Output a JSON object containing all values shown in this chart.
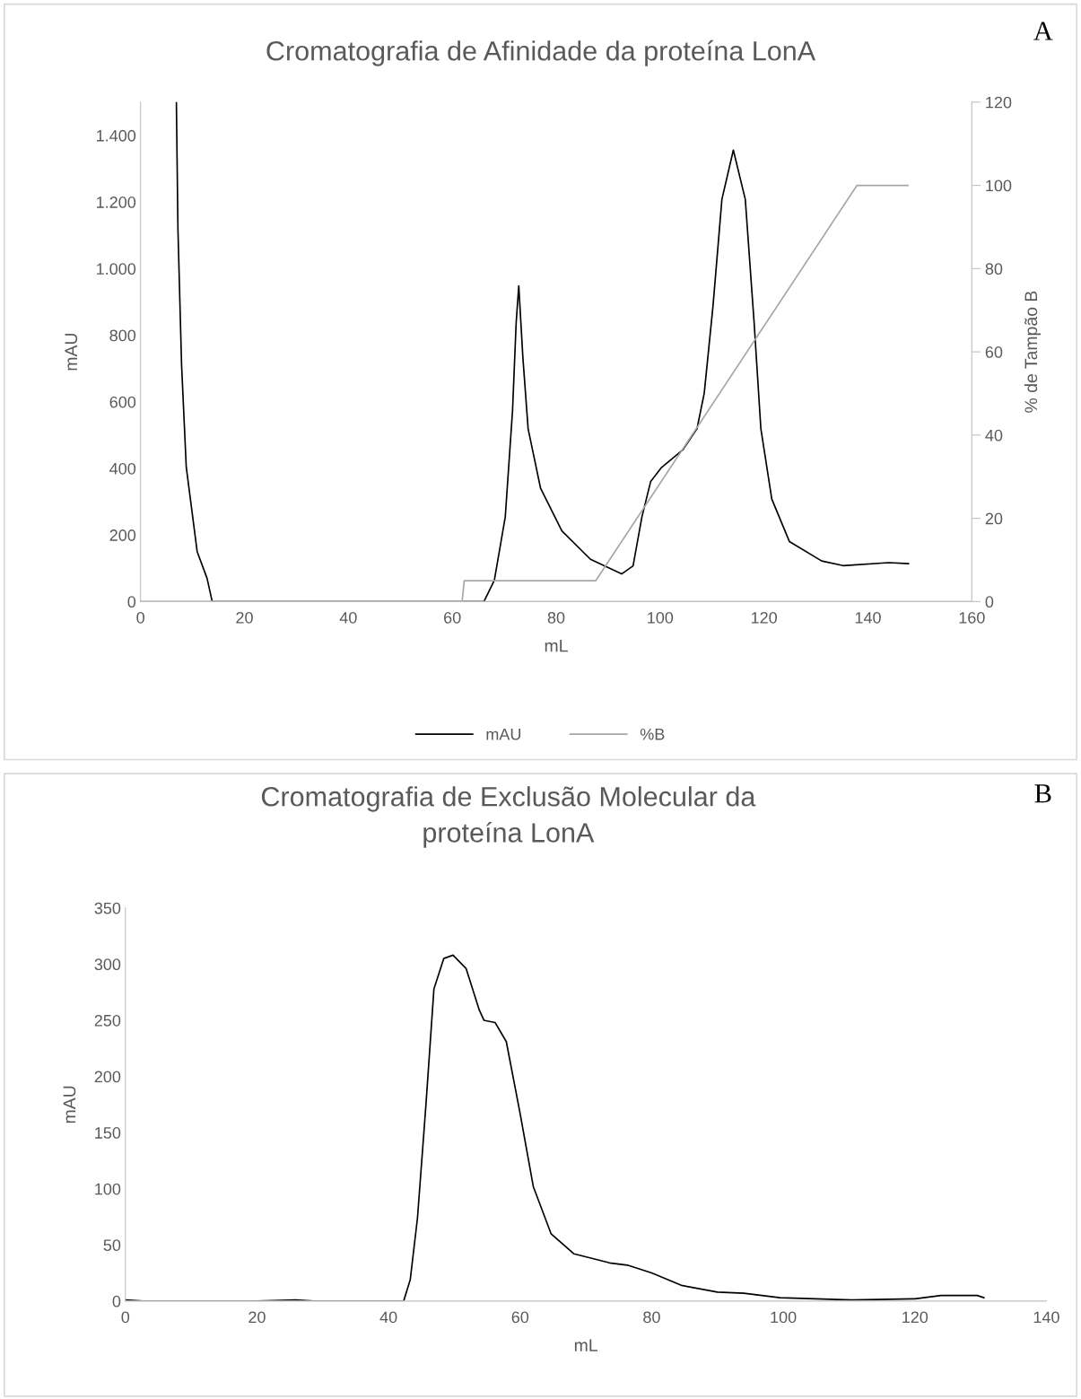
{
  "chart_data": [
    {
      "type": "line",
      "title": "Cromatografia de Afinidade da proteína LonA",
      "xlabel": "mL",
      "ylabel": "mAU",
      "y2label": "% de Tampão B",
      "annotations": [
        "A"
      ],
      "xlim": [
        0,
        160
      ],
      "xticks": [
        0,
        20,
        40,
        60,
        80,
        100,
        120,
        140,
        160
      ],
      "ylim": [
        0,
        1500
      ],
      "yticks": [
        0,
        200,
        400,
        600,
        800,
        {
          "value": 1000,
          "label": "1.000"
        },
        {
          "value": 1200,
          "label": "1.200"
        },
        {
          "value": 1400,
          "label": "1.400"
        }
      ],
      "y2lim": [
        0,
        120
      ],
      "y2ticks": [
        0,
        20,
        40,
        60,
        80,
        100,
        120
      ],
      "grid": false,
      "legend": "bottom",
      "line_style": "solid",
      "marker": "none",
      "series": [
        {
          "name": "mAU",
          "color": "#000000",
          "x": [
            6.9,
            7.2,
            7.9,
            8.8,
            10.9,
            12.8,
            13.8,
            14.5,
            16,
            30,
            40,
            50,
            60,
            66.1,
            68.1,
            70.2,
            71.6,
            72.3,
            72.8,
            73.6,
            74.6,
            77.0,
            81.1,
            86.6,
            92.6,
            94.8,
            96.5,
            98.2,
            100.3,
            104.4,
            107.1,
            108.5,
            110.2,
            111.9,
            114.1,
            116.4,
            118.1,
            119.4,
            121.5,
            124.9,
            131.1,
            135.2,
            144.0,
            147.8
          ],
          "values": [
            1500,
            1119,
            712,
            404,
            150,
            70,
            0,
            0,
            0,
            0,
            0,
            0,
            0,
            0,
            64,
            254,
            573,
            838,
            948,
            731,
            519,
            340,
            212,
            127,
            83,
            107,
            254,
            361,
            403,
            456,
            519,
            626,
            890,
            1208,
            1356,
            1208,
            838,
            519,
            308,
            180,
            122,
            108,
            117,
            114
          ]
        },
        {
          "name": "%B",
          "color": "#a6a6a6",
          "axis": "y2",
          "x": [
            0,
            61.9,
            62.3,
            87.6,
            137.9,
            147.7
          ],
          "values": [
            0,
            0,
            5,
            5,
            100,
            100
          ]
        }
      ]
    },
    {
      "type": "line",
      "title": "Cromatografia de Exclusão Molecular da\nproteína LonA",
      "xlabel": "mL",
      "ylabel": "mAU",
      "annotations": [
        "B"
      ],
      "xlim": [
        0,
        140
      ],
      "xticks": [
        0,
        20,
        40,
        60,
        80,
        100,
        120,
        140
      ],
      "ylim": [
        0,
        350
      ],
      "yticks": [
        0,
        50,
        100,
        150,
        200,
        250,
        300,
        350
      ],
      "grid": false,
      "legend": false,
      "line_style": "solid",
      "marker": "none",
      "series": [
        {
          "color": "#000000",
          "x": [
            0,
            2.7,
            20,
            25.9,
            28.6,
            42.3,
            43.3,
            44.4,
            45.7,
            46.9,
            48.4,
            49.8,
            51.8,
            53.8,
            54.5,
            56.2,
            57.9,
            60,
            62,
            64.7,
            68.2,
            73.6,
            76.3,
            80,
            84.5,
            90,
            94,
            99.5,
            110.4,
            120,
            124,
            126.8,
            129.5,
            130.5
          ],
          "values": [
            1,
            0,
            0,
            1,
            0,
            0,
            19,
            74,
            176,
            278,
            305,
            308,
            296,
            259,
            250,
            248,
            231,
            167,
            102,
            60,
            42,
            34,
            32,
            25,
            14,
            8,
            7,
            3,
            1,
            2,
            5,
            5,
            5,
            3
          ]
        }
      ]
    }
  ]
}
